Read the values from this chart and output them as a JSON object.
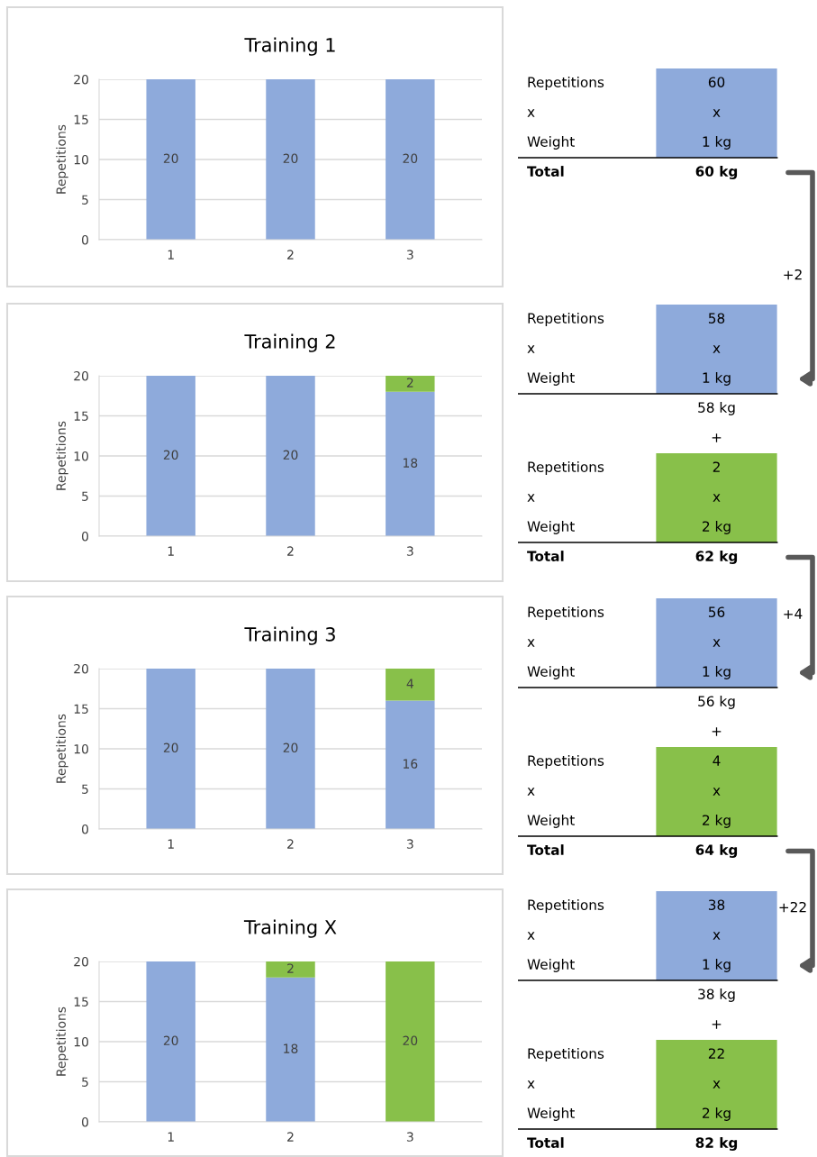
{
  "chart_data": [
    {
      "type": "bar",
      "stacked": true,
      "title": "Training 1",
      "ylabel": "Repetitions",
      "categories": [
        "1",
        "2",
        "3"
      ],
      "ylim": [
        0,
        20
      ],
      "yticks": [
        0,
        5,
        10,
        15,
        20
      ],
      "grid": "y",
      "data_labels": true,
      "series": [
        {
          "color": "#8eaadb",
          "values": [
            20,
            20,
            20
          ]
        }
      ]
    },
    {
      "type": "other",
      "categories": [
        "Repetitions",
        "x",
        "Weight",
        "Total"
      ],
      "value_labels": [
        "60",
        "x",
        "1 kg",
        "60 kg"
      ],
      "colors": [
        "#8eaadb",
        "#8eaadb",
        "#8eaadb",
        null
      ]
    },
    {
      "type": "bar",
      "stacked": true,
      "title": "Training 2",
      "ylabel": "Repetitions",
      "categories": [
        "1",
        "2",
        "3"
      ],
      "ylim": [
        0,
        20
      ],
      "yticks": [
        0,
        5,
        10,
        15,
        20
      ],
      "grid": "y",
      "data_labels": true,
      "series": [
        {
          "color": "#8eaadb",
          "values": [
            20,
            20,
            18
          ]
        },
        {
          "color": "#88c04a",
          "values": [
            null,
            null,
            2
          ]
        }
      ]
    },
    {
      "type": "other",
      "categories": [
        "Repetitions",
        "x",
        "Weight",
        null,
        null,
        "Repetitions",
        "x",
        "Weight",
        "Total"
      ],
      "value_labels": [
        "58",
        "x",
        "1 kg",
        "58 kg",
        "+",
        "2",
        "x",
        "2 kg",
        "62 kg"
      ],
      "colors": [
        "#8eaadb",
        "#8eaadb",
        "#8eaadb",
        null,
        null,
        "#88c04a",
        "#88c04a",
        "#88c04a",
        null
      ],
      "annotations": [
        "+2"
      ]
    },
    {
      "type": "bar",
      "stacked": true,
      "title": "Training 3",
      "ylabel": "Repetitions",
      "categories": [
        "1",
        "2",
        "3"
      ],
      "ylim": [
        0,
        20
      ],
      "yticks": [
        0,
        5,
        10,
        15,
        20
      ],
      "grid": "y",
      "data_labels": true,
      "series": [
        {
          "color": "#8eaadb",
          "values": [
            20,
            20,
            16
          ]
        },
        {
          "color": "#88c04a",
          "values": [
            null,
            null,
            4
          ]
        }
      ]
    },
    {
      "type": "other",
      "categories": [
        "Repetitions",
        "x",
        "Weight",
        null,
        null,
        "Repetitions",
        "x",
        "Weight",
        "Total"
      ],
      "value_labels": [
        "56",
        "x",
        "1 kg",
        "56 kg",
        "+",
        "4",
        "x",
        "2 kg",
        "64 kg"
      ],
      "colors": [
        "#8eaadb",
        "#8eaadb",
        "#8eaadb",
        null,
        null,
        "#88c04a",
        "#88c04a",
        "#88c04a",
        null
      ],
      "annotations": [
        "+4"
      ]
    },
    {
      "type": "bar",
      "stacked": true,
      "title": "Training X",
      "ylabel": "Repetitions",
      "categories": [
        "1",
        "2",
        "3"
      ],
      "ylim": [
        0,
        20
      ],
      "yticks": [
        0,
        5,
        10,
        15,
        20
      ],
      "grid": "y",
      "data_labels": true,
      "series": [
        {
          "color": "#8eaadb",
          "values": [
            20,
            18,
            null
          ]
        },
        {
          "color": "#88c04a",
          "values": [
            null,
            2,
            20
          ]
        }
      ]
    },
    {
      "type": "other",
      "categories": [
        "Repetitions",
        "x",
        "Weight",
        null,
        null,
        "Repetitions",
        "x",
        "Weight",
        "Total"
      ],
      "value_labels": [
        "38",
        "x",
        "1 kg",
        "38 kg",
        "+",
        "22",
        "x",
        "2 kg",
        "82 kg"
      ],
      "colors": [
        "#8eaadb",
        "#8eaadb",
        "#8eaadb",
        null,
        null,
        "#88c04a",
        "#88c04a",
        "#88c04a",
        null
      ],
      "annotations": [
        "+22"
      ]
    }
  ]
}
